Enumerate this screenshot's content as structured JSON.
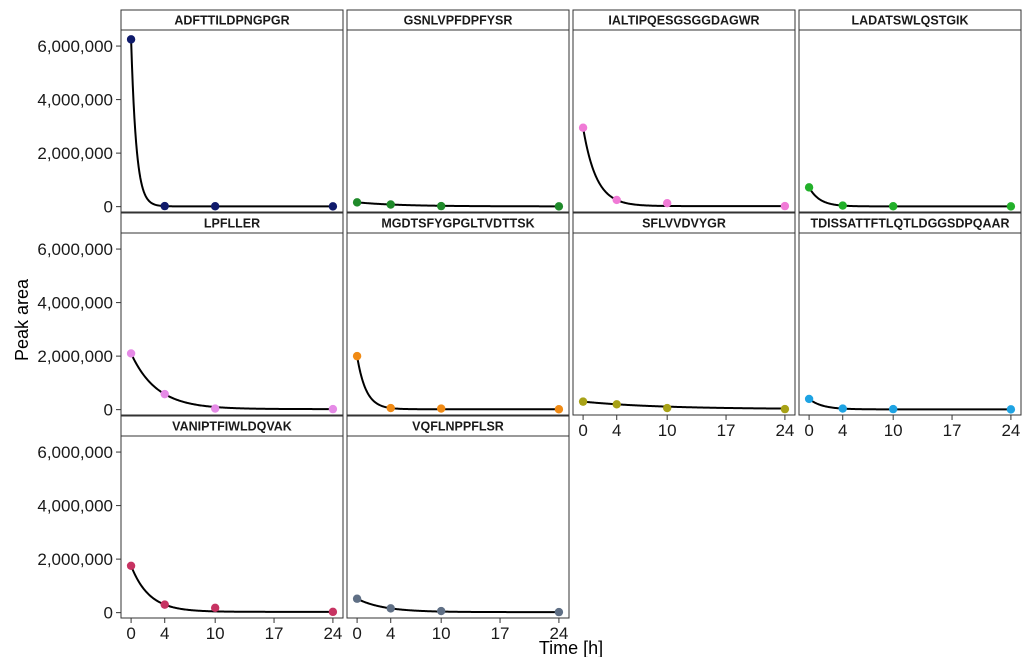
{
  "chart_data": {
    "type": "scatter",
    "xlabel": "Time [h]",
    "ylabel": "Peak area",
    "x_ticks": [
      0,
      4,
      10,
      17,
      24
    ],
    "x_tick_labels": [
      "0",
      "4",
      "10",
      "17",
      "24"
    ],
    "y_ticks": [
      0,
      2000000,
      4000000,
      6000000
    ],
    "y_tick_labels": [
      "0",
      "2,000,000",
      "4,000,000",
      "6,000,000"
    ],
    "xlim": [
      -1.2,
      25.2
    ],
    "ylim": [
      -200000,
      6600000
    ],
    "grid": false,
    "legend": "none",
    "columns": 4,
    "facets": [
      {
        "name": "ADFTTILDPNGPGR",
        "color": "#0f1a6b",
        "x": [
          0,
          4,
          10,
          24
        ],
        "y": [
          6250000,
          20000,
          15000,
          10000
        ]
      },
      {
        "name": "GSNLVPFDPFYSR",
        "color": "#1f8a2a",
        "x": [
          0,
          4,
          10,
          24
        ],
        "y": [
          160000,
          80000,
          20000,
          10000
        ]
      },
      {
        "name": "IALTIPQESGSGGDAGWR",
        "color": "#f07ad6",
        "x": [
          0,
          4,
          10,
          24
        ],
        "y": [
          2950000,
          250000,
          130000,
          20000
        ]
      },
      {
        "name": "LADATSWLQSTGIK",
        "color": "#22b02a",
        "x": [
          0,
          4,
          10,
          24
        ],
        "y": [
          720000,
          40000,
          15000,
          10000
        ]
      },
      {
        "name": "LPFLLER",
        "color": "#e58ae6",
        "x": [
          0,
          4,
          10,
          24
        ],
        "y": [
          2100000,
          580000,
          40000,
          20000
        ]
      },
      {
        "name": "MGDTSFYGPGLTVDTTSK",
        "color": "#f08a14",
        "x": [
          0,
          4,
          10,
          24
        ],
        "y": [
          2000000,
          60000,
          40000,
          15000
        ]
      },
      {
        "name": "SFLVVDVYGR",
        "color": "#a8a216",
        "x": [
          0,
          4,
          10,
          24
        ],
        "y": [
          300000,
          200000,
          60000,
          20000
        ]
      },
      {
        "name": "TDISSATTFTLQTLDGGSDPQAAR",
        "color": "#1ea3e3",
        "x": [
          0,
          4,
          10,
          24
        ],
        "y": [
          400000,
          40000,
          20000,
          10000
        ]
      },
      {
        "name": "VANIPTFIWLDQVAK",
        "color": "#c73362",
        "x": [
          0,
          4,
          10,
          24
        ],
        "y": [
          1750000,
          300000,
          180000,
          30000
        ]
      },
      {
        "name": "VQFLNPPFLSR",
        "color": "#5f6f85",
        "x": [
          0,
          4,
          10,
          24
        ],
        "y": [
          520000,
          160000,
          60000,
          20000
        ]
      }
    ]
  }
}
